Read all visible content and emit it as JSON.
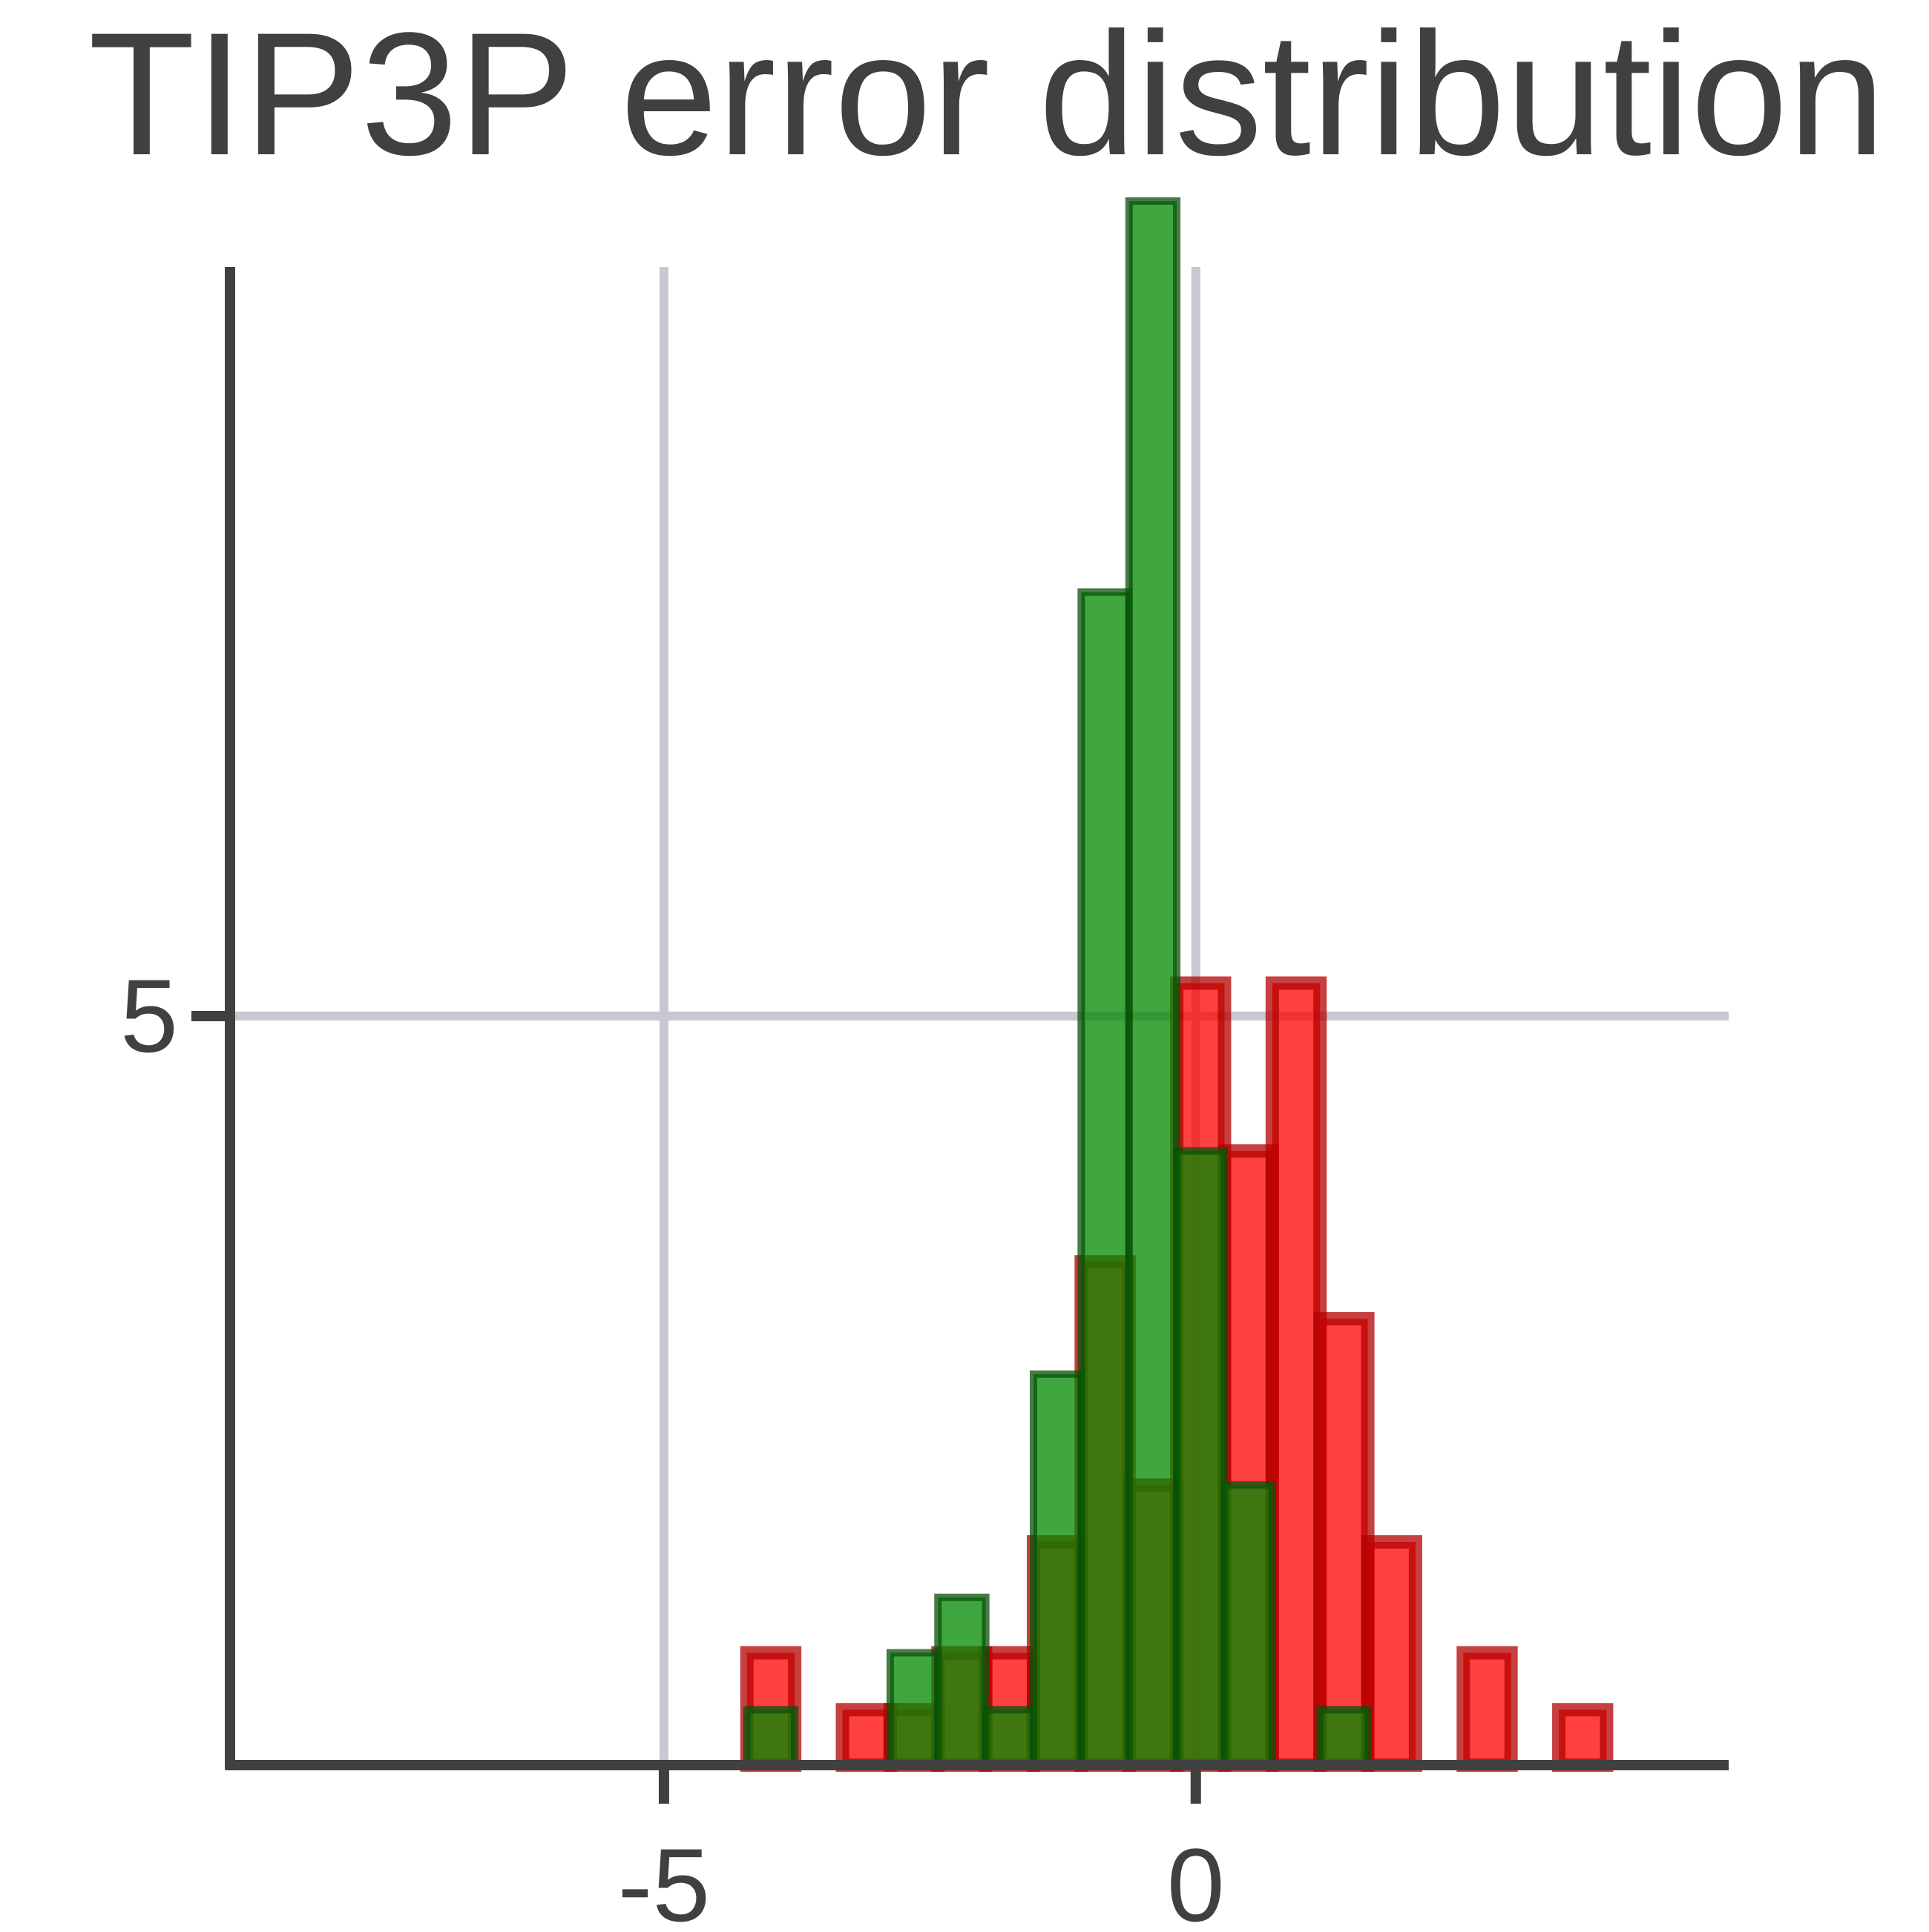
{
  "chart_data": {
    "type": "histogram",
    "title": "TIP3P error distribution",
    "bins": [
      -4.22,
      -3.771,
      -3.322,
      -2.873,
      -2.424,
      -1.975,
      -1.526,
      -1.077,
      -0.628,
      -0.179,
      0.27,
      0.719,
      1.168,
      1.617,
      2.066,
      2.515,
      2.964,
      3.413,
      3.862
    ],
    "series": [
      {
        "color": "#ff0000",
        "edgecolor": "#b40000",
        "values": [
          0.75,
          0,
          0.37,
          0.37,
          0.75,
          0.75,
          1.49,
          3.36,
          1.87,
          5.22,
          4.1,
          5.22,
          2.98,
          1.49,
          0,
          0.75,
          0,
          0.37
        ]
      },
      {
        "color": "#008800",
        "edgecolor": "#0a500a",
        "values": [
          0.37,
          0,
          0,
          0.75,
          1.12,
          0.37,
          2.61,
          7.83,
          10.44,
          4.1,
          1.87,
          0,
          0.37,
          0,
          0,
          0,
          0,
          0
        ]
      }
    ],
    "xlim": [
      -9.08,
      5.01
    ],
    "ylim": [
      0,
      10
    ],
    "xticks": [
      -5,
      0
    ],
    "yticks": [
      5
    ],
    "grid": true
  }
}
